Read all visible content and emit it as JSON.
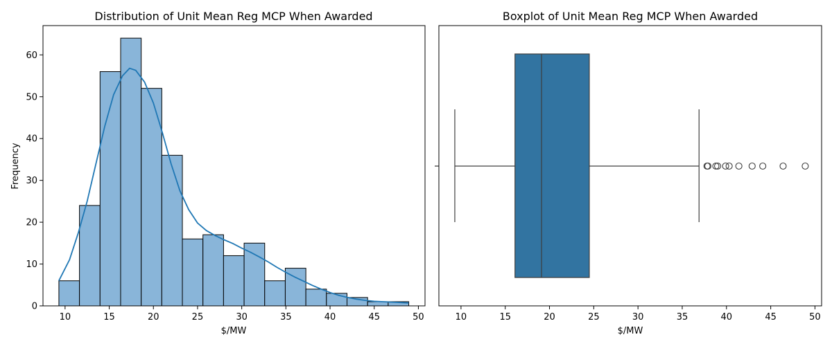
{
  "chart_data": [
    {
      "type": "bar",
      "subtype": "histogram-with-kde",
      "title": "Distribution of Unit Mean Reg MCP When Awarded",
      "xlabel": "$/MW",
      "ylabel": "Frequency",
      "xlim": [
        7.5,
        50.75
      ],
      "ylim": [
        0,
        67
      ],
      "x_ticks": [
        10,
        15,
        20,
        25,
        30,
        35,
        40,
        45,
        50
      ],
      "y_ticks": [
        0,
        10,
        20,
        30,
        40,
        50,
        60
      ],
      "bin_edges": [
        9.3,
        11.63,
        13.96,
        16.29,
        18.62,
        20.95,
        23.28,
        25.61,
        27.94,
        30.27,
        32.6,
        34.93,
        37.26,
        39.59,
        41.92,
        44.25,
        46.58,
        48.91
      ],
      "values": [
        6,
        24,
        56,
        64,
        52,
        36,
        16,
        17,
        12,
        15,
        6,
        9,
        4,
        3,
        2,
        1,
        1
      ],
      "kde": {
        "x": [
          9.3,
          10.5,
          11.5,
          12.5,
          13.5,
          14.5,
          15.5,
          16.5,
          17.3,
          18.0,
          19.0,
          20.0,
          21.0,
          22.0,
          23.0,
          24.0,
          25.0,
          26.0,
          27.0,
          28.0,
          29.0,
          30.0,
          31.0,
          32.0,
          33.0,
          34.0,
          35.0,
          36.0,
          37.0,
          38.0,
          39.0,
          40.0,
          41.0,
          42.0,
          43.0,
          44.0,
          45.0,
          46.0,
          47.0,
          48.0,
          48.9
        ],
        "y": [
          6,
          11,
          17.5,
          25,
          34,
          43,
          50.5,
          55,
          56.8,
          56.3,
          53.5,
          48.5,
          41.5,
          34,
          27.5,
          23,
          19.8,
          18,
          16.8,
          15.8,
          14.9,
          13.8,
          12.8,
          11.7,
          10.5,
          9.2,
          8,
          6.9,
          5.9,
          4.9,
          4,
          3.2,
          2.5,
          2,
          1.6,
          1.3,
          1.1,
          1,
          0.9,
          0.8,
          0.7
        ]
      },
      "colors": {
        "bar_fill": "#89b5d9",
        "bar_edge": "#000000",
        "kde_line": "#1f77b4"
      }
    },
    {
      "type": "boxplot",
      "title": "Boxplot of Unit Mean Reg MCP When Awarded",
      "xlabel": "$/MW",
      "xlim": [
        7.5,
        50.75
      ],
      "x_ticks": [
        10,
        15,
        20,
        25,
        30,
        35,
        40,
        45,
        50
      ],
      "whisker_low": 9.3,
      "q1": 16.1,
      "median": 19.1,
      "q3": 24.5,
      "whisker_high": 36.9,
      "outliers": [
        37.8,
        37.9,
        38.8,
        39.0,
        39.9,
        40.3,
        41.4,
        42.9,
        44.1,
        46.4,
        48.9
      ],
      "colors": {
        "box_fill": "#3274a1",
        "line": "#3d3d3d"
      }
    }
  ]
}
